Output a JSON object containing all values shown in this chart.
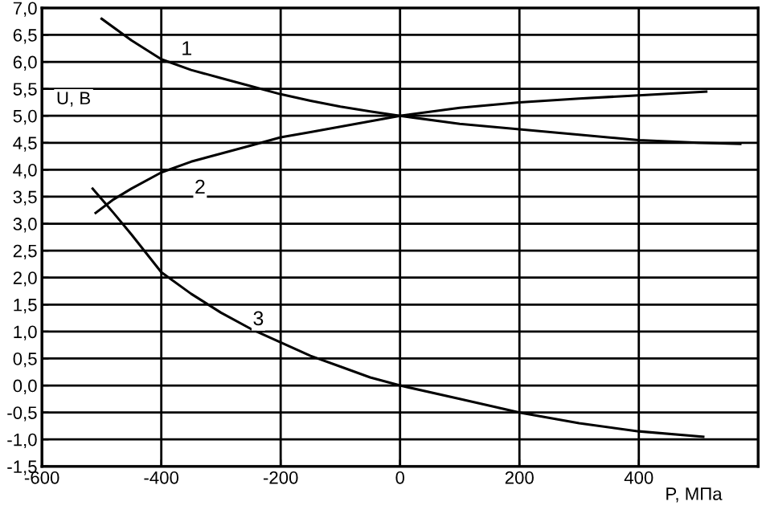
{
  "chart_data": {
    "type": "line",
    "xlabel": "P, МПа",
    "ylabel": "U, В",
    "xlim": [
      -600,
      600
    ],
    "ylim": [
      -1.5,
      7.0
    ],
    "xticks": [
      -600,
      -400,
      -200,
      0,
      200,
      400,
      {
        "value": 600,
        "label": null
      }
    ],
    "yticks": [
      {
        "value": -1.5,
        "label": "-1,5"
      },
      {
        "value": -1.0,
        "label": "-1,0"
      },
      {
        "value": -0.5,
        "label": "-0,5"
      },
      {
        "value": 0.0,
        "label": "0,0"
      },
      {
        "value": 0.5,
        "label": "0,5"
      },
      {
        "value": 1.0,
        "label": "1,0"
      },
      {
        "value": 1.5,
        "label": "1,5"
      },
      {
        "value": 2.0,
        "label": "2,0"
      },
      {
        "value": 2.5,
        "label": "2,5"
      },
      {
        "value": 3.0,
        "label": "3,0"
      },
      {
        "value": 3.5,
        "label": "3,5"
      },
      {
        "value": 4.0,
        "label": "4,0"
      },
      {
        "value": 4.5,
        "label": "4,5"
      },
      {
        "value": 5.0,
        "label": "5,0"
      },
      {
        "value": 5.5,
        "label": "5,5"
      },
      {
        "value": 6.0,
        "label": "6,0"
      },
      {
        "value": 6.5,
        "label": "6,5"
      },
      {
        "value": 7.0,
        "label": "7,0"
      }
    ],
    "grid": true,
    "marker": "none",
    "line_style": "solid",
    "series": [
      {
        "name": "1",
        "color": "#000000",
        "x": [
          -500,
          -450,
          -400,
          -350,
          -300,
          -250,
          -200,
          -150,
          -100,
          -50,
          0,
          100,
          200,
          300,
          400,
          500,
          570
        ],
        "values": [
          6.8,
          6.4,
          6.05,
          5.85,
          5.7,
          5.55,
          5.4,
          5.28,
          5.17,
          5.08,
          5.0,
          4.85,
          4.75,
          4.65,
          4.55,
          4.5,
          4.48
        ]
      },
      {
        "name": "2",
        "color": "#000000",
        "x": [
          -510,
          -480,
          -450,
          -400,
          -350,
          -300,
          -250,
          -200,
          -150,
          -100,
          -50,
          0,
          100,
          200,
          300,
          400,
          513
        ],
        "values": [
          3.2,
          3.45,
          3.65,
          3.95,
          4.15,
          4.3,
          4.45,
          4.6,
          4.7,
          4.8,
          4.9,
          5.0,
          5.15,
          5.25,
          5.32,
          5.38,
          5.45
        ]
      },
      {
        "name": "3",
        "color": "#000000",
        "x": [
          -515,
          -480,
          -450,
          -400,
          -350,
          -300,
          -250,
          -200,
          -150,
          -100,
          -50,
          0,
          100,
          200,
          300,
          400,
          508
        ],
        "values": [
          3.65,
          3.2,
          2.8,
          2.1,
          1.7,
          1.35,
          1.05,
          0.8,
          0.55,
          0.35,
          0.15,
          0.0,
          -0.25,
          -0.5,
          -0.7,
          -0.85,
          -0.95
        ]
      }
    ]
  }
}
